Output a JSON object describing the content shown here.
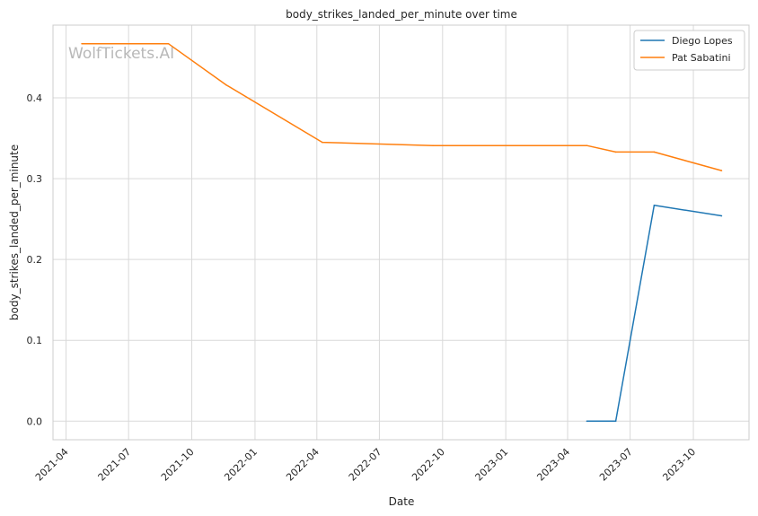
{
  "chart_data": {
    "type": "line",
    "title": "body_strikes_landed_per_minute over time",
    "xlabel": "Date",
    "ylabel": "body_strikes_landed_per_minute",
    "watermark": "WolfTickets.AI",
    "x_ticks": [
      "2021-04",
      "2021-07",
      "2021-10",
      "2022-01",
      "2022-04",
      "2022-07",
      "2022-10",
      "2023-01",
      "2023-04",
      "2023-07",
      "2023-10"
    ],
    "y_ticks": [
      "0.0",
      "0.1",
      "0.2",
      "0.3",
      "0.4"
    ],
    "xlim": [
      "2021-03-13",
      "2023-12-21"
    ],
    "ylim": [
      -0.023,
      0.49
    ],
    "grid": true,
    "legend_position": "top-right",
    "series": [
      {
        "name": "Diego Lopes",
        "color": "#1f77b4",
        "points": [
          {
            "x": "2023-04-29",
            "y": 0.0
          },
          {
            "x": "2023-06-10",
            "y": 0.0
          },
          {
            "x": "2023-08-05",
            "y": 0.267
          },
          {
            "x": "2023-11-11",
            "y": 0.254
          }
        ]
      },
      {
        "name": "Pat Sabatini",
        "color": "#ff7f0e",
        "points": [
          {
            "x": "2021-04-24",
            "y": 0.467
          },
          {
            "x": "2021-08-28",
            "y": 0.467
          },
          {
            "x": "2021-11-20",
            "y": 0.416
          },
          {
            "x": "2022-04-09",
            "y": 0.345
          },
          {
            "x": "2022-09-17",
            "y": 0.341
          },
          {
            "x": "2023-04-29",
            "y": 0.341
          },
          {
            "x": "2023-06-10",
            "y": 0.333
          },
          {
            "x": "2023-08-05",
            "y": 0.333
          },
          {
            "x": "2023-11-11",
            "y": 0.31
          }
        ]
      }
    ]
  }
}
